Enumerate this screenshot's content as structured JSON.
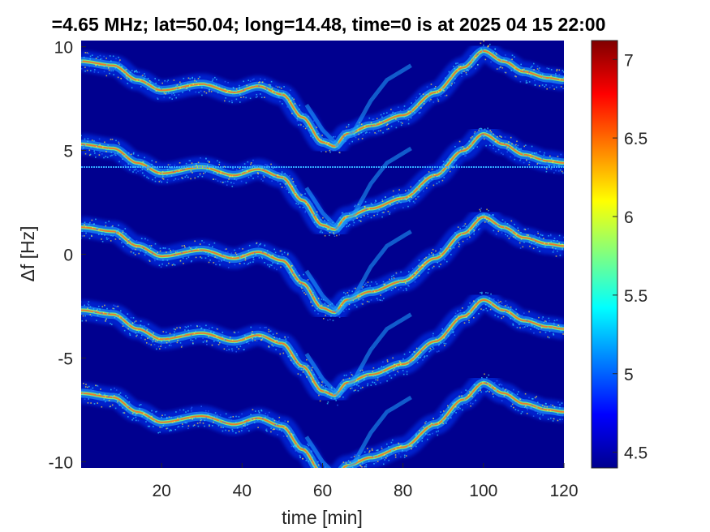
{
  "chart_data": {
    "type": "heatmap",
    "title": "=4.65 MHz;  lat=50.04; long=14.48, time=0 is at 2025 04 15 22:00",
    "xlabel": "time [min]",
    "ylabel": "Δf [Hz]",
    "xlim": [
      0,
      120
    ],
    "ylim": [
      -10.3,
      10.3
    ],
    "xticks": [
      20,
      40,
      60,
      80,
      100,
      120
    ],
    "xtick_labels": [
      "20",
      "40",
      "60",
      "80",
      "100",
      "120"
    ],
    "yticks": [
      10,
      5,
      0,
      -5,
      -10
    ],
    "ytick_labels": [
      "10",
      "5",
      "0",
      "-5",
      "-10"
    ],
    "colorbar": {
      "colormap": "jet",
      "range": [
        4.4,
        7.12
      ],
      "ticks": [
        7,
        6.5,
        6,
        5.5,
        5,
        4.5
      ],
      "tick_labels": [
        "7",
        "6.5",
        "6",
        "5.5",
        "5",
        "4.5"
      ]
    },
    "background_color": "#00008f",
    "constant_line": {
      "y": 4.2
    },
    "traces": [
      {
        "offset": 0
      },
      {
        "offset": 4
      },
      {
        "offset": -4
      },
      {
        "offset": 8
      },
      {
        "offset": -8
      }
    ],
    "trace_shape": {
      "x": [
        0,
        8,
        14,
        20,
        30,
        38,
        44,
        50,
        55,
        60,
        63,
        66,
        72,
        80,
        88,
        95,
        100,
        105,
        110,
        116,
        120
      ],
      "y": [
        1.3,
        1.1,
        0.4,
        -0.1,
        0.2,
        -0.2,
        0.1,
        -0.3,
        -1.4,
        -2.6,
        -2.8,
        -2.2,
        -1.8,
        -1.3,
        -0.2,
        1.0,
        1.8,
        1.3,
        0.8,
        0.5,
        0.4
      ]
    },
    "secondary_trace": {
      "x": [
        56,
        60,
        64,
        68,
        72,
        76,
        82
      ],
      "y": [
        -0.8,
        -2.0,
        -2.8,
        -2.0,
        -0.6,
        0.4,
        1.1
      ]
    }
  }
}
